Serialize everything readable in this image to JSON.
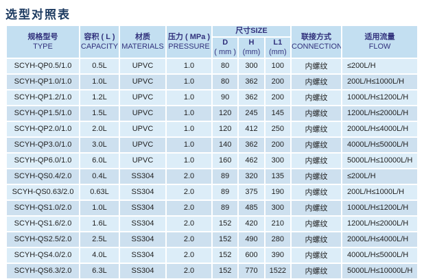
{
  "page_title": "选型对照表",
  "colors": {
    "title_color": "#1c3a60",
    "header_bg": "#c3dff1",
    "header_text": "#31317c",
    "row_light": "#dcedf8",
    "row_dark": "#cde0ef",
    "body_text": "#1e1e1e"
  },
  "table": {
    "headers": {
      "type_zh": "规格型号",
      "type_en": "TYPE",
      "capacity_zh": "容积 ( L )",
      "capacity_en": "CAPACITY",
      "materials_zh": "材质",
      "materials_en": "MATERIALS",
      "pressure_zh": "压力 ( MPa )",
      "pressure_en": "PRESSURE",
      "size_group": "尺寸SIZE",
      "d_label": "D",
      "d_unit": "( mm )",
      "h_label": "H",
      "h_unit": "(mm)",
      "l1_label": "L1",
      "l1_unit": "(mm)",
      "connections_zh": "联接方式",
      "connections_en": "CONNECTIONS",
      "flow_zh": "适用流量",
      "flow_en": "FLOW"
    },
    "column_keys": [
      "type",
      "capacity",
      "materials",
      "pressure",
      "d",
      "h",
      "l1",
      "connections",
      "flow"
    ],
    "rows": [
      {
        "type": "SCYH-QP0.5/1.0",
        "capacity": "0.5L",
        "materials": "UPVC",
        "pressure": "1.0",
        "d": "80",
        "h": "300",
        "l1": "100",
        "connections": "内螺纹",
        "flow": "≤200L/H"
      },
      {
        "type": "SCYH-QP1.0/1.0",
        "capacity": "1.0L",
        "materials": "UPVC",
        "pressure": "1.0",
        "d": "80",
        "h": "362",
        "l1": "200",
        "connections": "内螺纹",
        "flow": "200L/H≤1000L/H"
      },
      {
        "type": "SCYH-QP1.2/1.0",
        "capacity": "1.2L",
        "materials": "UPVC",
        "pressure": "1.0",
        "d": "90",
        "h": "362",
        "l1": "200",
        "connections": "内螺纹",
        "flow": "1000L/H≤1200L/H"
      },
      {
        "type": "SCYH-QP1.5/1.0",
        "capacity": "1.5L",
        "materials": "UPVC",
        "pressure": "1.0",
        "d": "120",
        "h": "245",
        "l1": "145",
        "connections": "内螺纹",
        "flow": "1200L/H≤2000L/H"
      },
      {
        "type": "SCYH-QP2.0/1.0",
        "capacity": "2.0L",
        "materials": "UPVC",
        "pressure": "1.0",
        "d": "120",
        "h": "412",
        "l1": "250",
        "connections": "内螺纹",
        "flow": "2000L/H≤4000L/H"
      },
      {
        "type": "SCYH-QP3.0/1.0",
        "capacity": "3.0L",
        "materials": "UPVC",
        "pressure": "1.0",
        "d": "140",
        "h": "362",
        "l1": "200",
        "connections": "内螺纹",
        "flow": "4000L/H≤5000L/H"
      },
      {
        "type": "SCYH-QP6.0/1.0",
        "capacity": "6.0L",
        "materials": "UPVC",
        "pressure": "1.0",
        "d": "160",
        "h": "462",
        "l1": "300",
        "connections": "内螺纹",
        "flow": "5000L/H≤10000L/H"
      },
      {
        "type": "SCYH-QS0.4/2.0",
        "capacity": "0.4L",
        "materials": "SS304",
        "pressure": "2.0",
        "d": "89",
        "h": "320",
        "l1": "135",
        "connections": "内螺纹",
        "flow": "≤200L/H"
      },
      {
        "type": "SCYH-QS0.63/2.0",
        "capacity": "0.63L",
        "materials": "SS304",
        "pressure": "2.0",
        "d": "89",
        "h": "375",
        "l1": "190",
        "connections": "内螺纹",
        "flow": "200L/H≤1000L/H"
      },
      {
        "type": "SCYH-QS1.0/2.0",
        "capacity": "1.0L",
        "materials": "SS304",
        "pressure": "2.0",
        "d": "89",
        "h": "485",
        "l1": "300",
        "connections": "内螺纹",
        "flow": "1000L/H≤1200L/H"
      },
      {
        "type": "SCYH-QS1.6/2.0",
        "capacity": "1.6L",
        "materials": "SS304",
        "pressure": "2.0",
        "d": "152",
        "h": "420",
        "l1": "210",
        "connections": "内螺纹",
        "flow": "1200L/H≤2000L/H"
      },
      {
        "type": "SCYH-QS2.5/2.0",
        "capacity": "2.5L",
        "materials": "SS304",
        "pressure": "2.0",
        "d": "152",
        "h": "490",
        "l1": "280",
        "connections": "内螺纹",
        "flow": "2000L/H≤4000L/H"
      },
      {
        "type": "SCYH-QS4.0/2.0",
        "capacity": "4.0L",
        "materials": "SS304",
        "pressure": "2.0",
        "d": "152",
        "h": "600",
        "l1": "390",
        "connections": "内螺纹",
        "flow": "4000L/H≤5000L/H"
      },
      {
        "type": "SCYH-QS6.3/2.0",
        "capacity": "6.3L",
        "materials": "SS304",
        "pressure": "2.0",
        "d": "152",
        "h": "770",
        "l1": "1522",
        "connections": "内螺纹",
        "flow": "5000L/H≤10000L/H"
      }
    ]
  }
}
